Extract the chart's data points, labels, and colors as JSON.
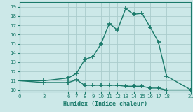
{
  "upper_x": [
    0,
    3,
    6,
    7,
    8,
    9,
    10,
    11,
    12,
    13,
    14,
    15,
    16,
    17,
    18,
    21
  ],
  "upper_y": [
    11.0,
    11.0,
    11.3,
    11.8,
    13.3,
    13.6,
    15.0,
    17.2,
    16.5,
    18.8,
    18.2,
    18.3,
    16.8,
    15.2,
    11.5,
    10.0
  ],
  "lower_x": [
    0,
    3,
    6,
    7,
    8,
    9,
    10,
    11,
    12,
    13,
    14,
    15,
    16,
    17,
    18,
    21
  ],
  "lower_y": [
    11.0,
    10.8,
    10.8,
    11.1,
    10.5,
    10.5,
    10.5,
    10.5,
    10.5,
    10.4,
    10.4,
    10.4,
    10.2,
    10.2,
    10.0,
    10.0
  ],
  "line_color": "#1a7a6a",
  "bg_color": "#cce8e8",
  "grid_color": "#aacccc",
  "xlabel": "Humidex (Indice chaleur)",
  "xlim": [
    0,
    21
  ],
  "ylim": [
    9.8,
    19.5
  ],
  "xticks": [
    0,
    3,
    6,
    7,
    8,
    9,
    10,
    11,
    12,
    13,
    14,
    15,
    16,
    17,
    18,
    21
  ],
  "yticks": [
    10,
    11,
    12,
    13,
    14,
    15,
    16,
    17,
    18,
    19
  ],
  "marker": "+",
  "markersize": 4,
  "linewidth": 1.0
}
